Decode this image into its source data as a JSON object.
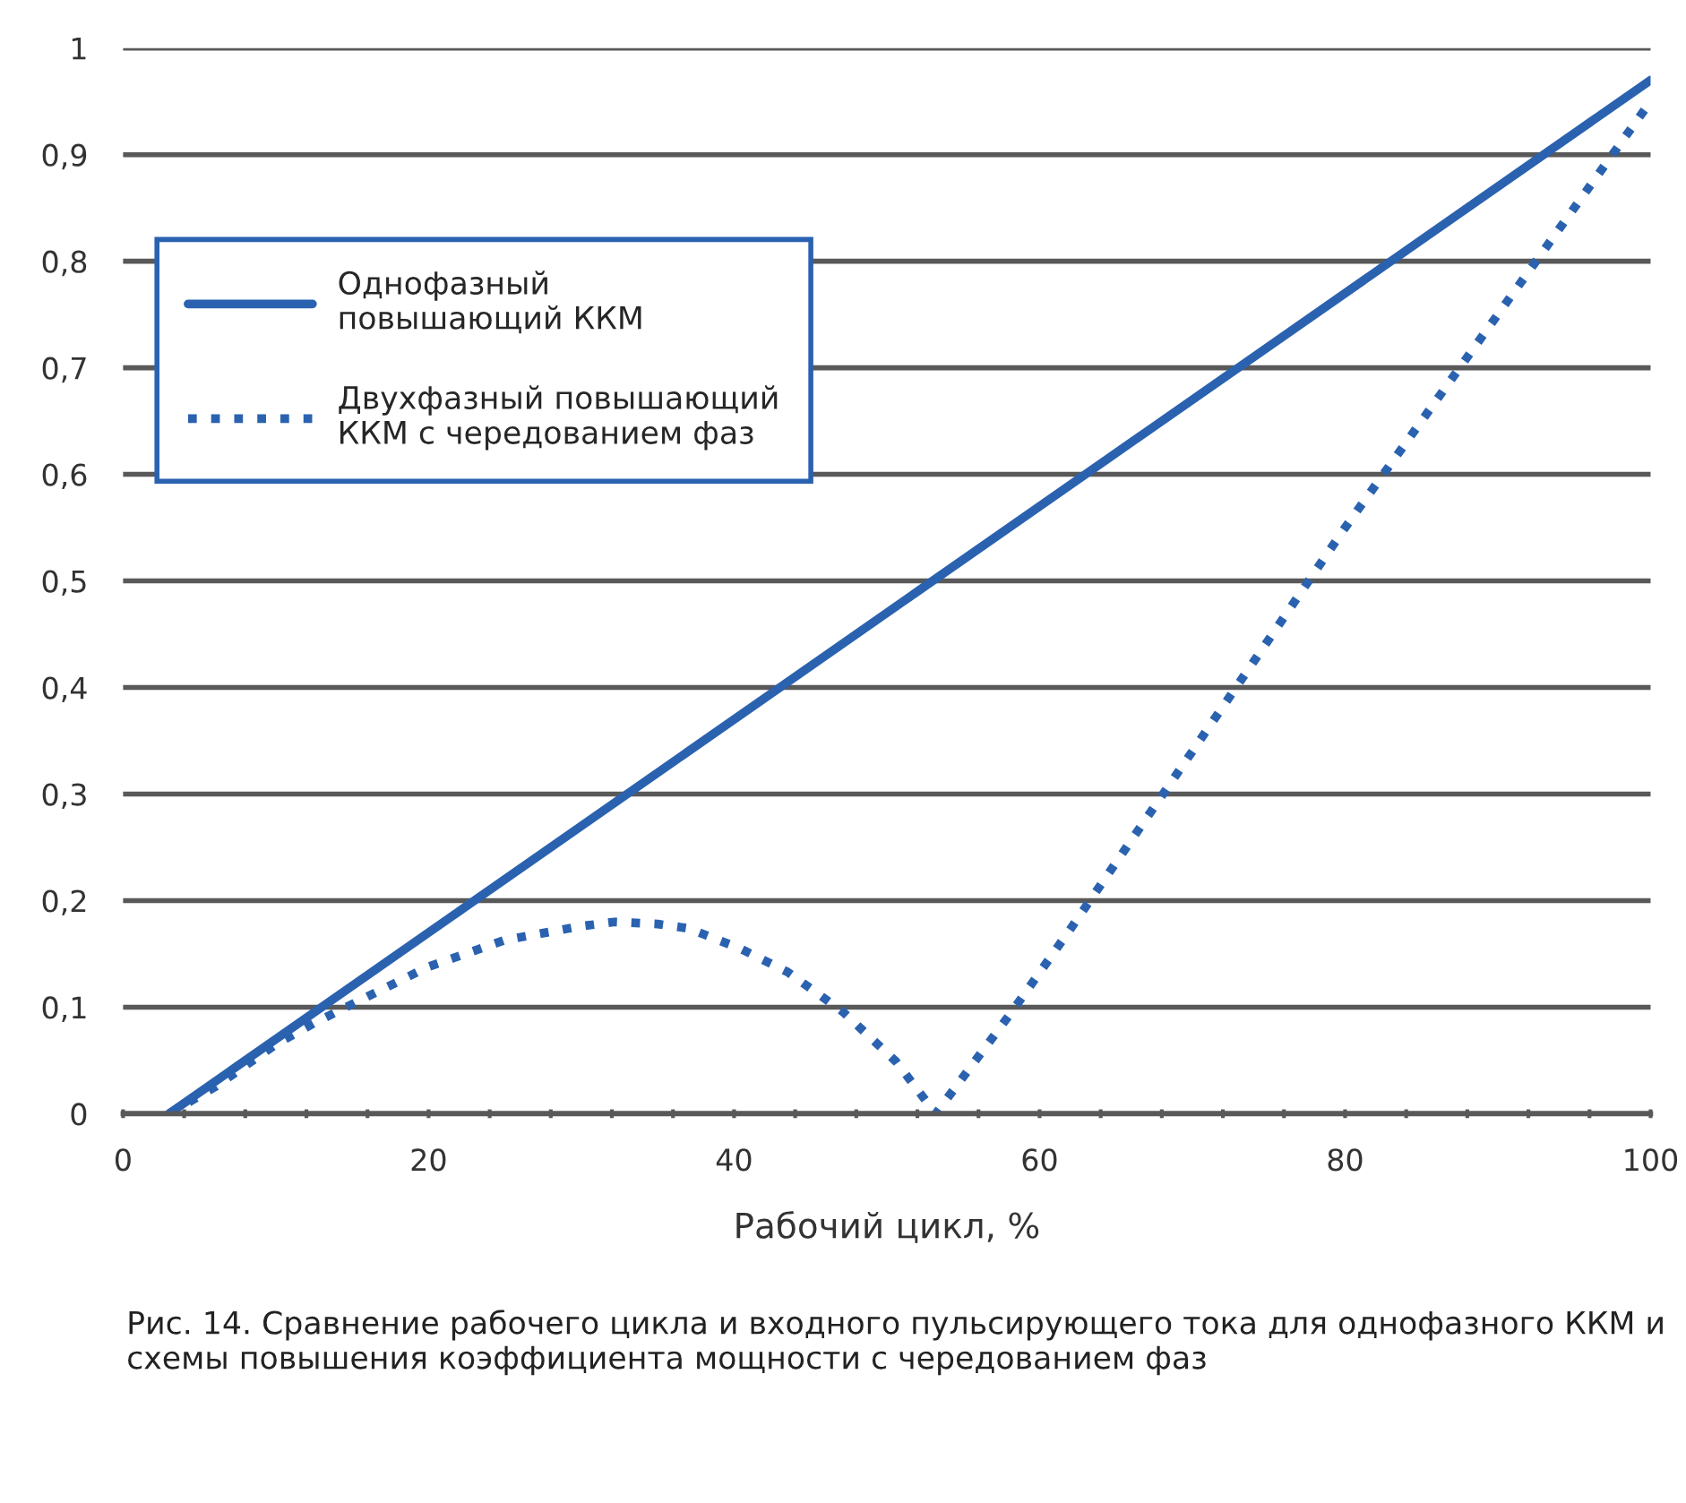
{
  "chart_data": {
    "type": "line",
    "xlabel": "Рабочий цикл, %",
    "annotations": [
      "Рис. 14. Сравнение рабочего цикла и входного пульсирующего тока для однофазного ККМ и схемы повышения коэффициента мощности с чередованием фаз"
    ],
    "series": [
      {
        "name": "Однофазный повышающий ККМ",
        "color": "#2a62b0",
        "line_style": "solid",
        "x": [
          3,
          100
        ],
        "values": [
          0,
          0.97
        ]
      },
      {
        "name": "Двухфазный повышающий ККМ с чередованием фаз",
        "color": "#2a62b0",
        "line_style": "dotted",
        "x": [
          3,
          6,
          10,
          12.5,
          16,
          20,
          25,
          30,
          32.2,
          35,
          37,
          40.4,
          43.5,
          47.1,
          50.6,
          53.2,
          58.2,
          62.1,
          70,
          80,
          90,
          100
        ],
        "values": [
          0,
          0.025,
          0.065,
          0.085,
          0.11,
          0.138,
          0.163,
          0.176,
          0.18,
          0.178,
          0.174,
          0.155,
          0.133,
          0.096,
          0.049,
          0,
          0.096,
          0.175,
          0.34,
          0.55,
          0.75,
          0.95
        ]
      }
    ],
    "xlim": [
      0,
      100
    ],
    "ylim": [
      0,
      1
    ],
    "xticks": [
      0,
      {
        "value": 4,
        "label": null
      },
      {
        "value": 8,
        "label": null
      },
      {
        "value": 12,
        "label": null
      },
      {
        "value": 16,
        "label": null
      },
      20,
      {
        "value": 24,
        "label": null
      },
      {
        "value": 28,
        "label": null
      },
      {
        "value": 32,
        "label": null
      },
      {
        "value": 36,
        "label": null
      },
      40,
      {
        "value": 44,
        "label": null
      },
      {
        "value": 48,
        "label": null
      },
      {
        "value": 52,
        "label": null
      },
      {
        "value": 56,
        "label": null
      },
      60,
      {
        "value": 64,
        "label": null
      },
      {
        "value": 68,
        "label": null
      },
      {
        "value": 72,
        "label": null
      },
      {
        "value": 76,
        "label": null
      },
      80,
      {
        "value": 84,
        "label": null
      },
      {
        "value": 88,
        "label": null
      },
      {
        "value": 92,
        "label": null
      },
      {
        "value": 96,
        "label": null
      },
      100
    ],
    "yticks": [
      0,
      {
        "value": 0.1,
        "label": "0,1"
      },
      {
        "value": 0.2,
        "label": "0,2"
      },
      {
        "value": 0.3,
        "label": "0,3"
      },
      {
        "value": 0.4,
        "label": "0,4"
      },
      {
        "value": 0.5,
        "label": "0,5"
      },
      {
        "value": 0.6,
        "label": "0,6"
      },
      {
        "value": 0.7,
        "label": "0,7"
      },
      {
        "value": 0.8,
        "label": "0,8"
      },
      {
        "value": 0.9,
        "label": "0,9"
      },
      1
    ],
    "grid": "y",
    "legend": "top left"
  }
}
